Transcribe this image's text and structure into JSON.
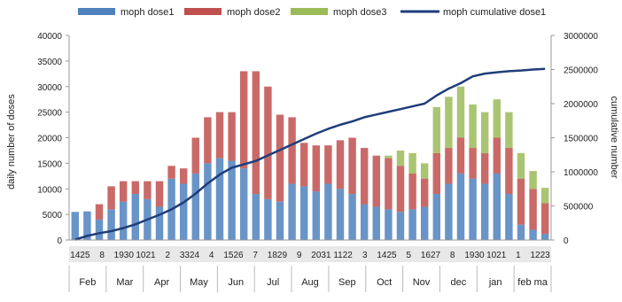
{
  "chart_data": {
    "type": "bar",
    "bar_mode": "stacked",
    "title": "",
    "legend": {
      "placement": "top",
      "entries": [
        {
          "label": "moph dose1",
          "kind": "bar",
          "color": "#4f81bd"
        },
        {
          "label": "moph dose2",
          "kind": "bar",
          "color": "#c0504d"
        },
        {
          "label": "moph dose3",
          "kind": "bar",
          "color": "#9bbb59"
        },
        {
          "label": "moph cumulative dose1",
          "kind": "line",
          "color": "#1f3d7a"
        }
      ]
    },
    "y_left": {
      "label": "daily number of doses",
      "ticks": [
        "0",
        "5000",
        "10000",
        "15000",
        "20000",
        "25000",
        "30000",
        "35000",
        "40000"
      ],
      "range": [
        0,
        40000
      ]
    },
    "y_right": {
      "label": "cumulative number",
      "ticks": [
        "0",
        "500000",
        "1000000",
        "1500000",
        "2000000",
        "2500000",
        "3000000"
      ],
      "range": [
        0,
        3000000
      ]
    },
    "x_tick_text": [
      "1425",
      "8",
      "1930",
      "1021",
      "2",
      "3324",
      "4",
      "1526",
      "7",
      "1829",
      "9",
      "2031",
      "1122",
      "3",
      "1425",
      "5",
      "1627",
      "8",
      "1930",
      "1021",
      "1",
      "1223"
    ],
    "months": [
      "Feb",
      "Mar",
      "Apr",
      "May",
      "Jun",
      "Jul",
      "Aug",
      "Sep",
      "Oct",
      "Nov",
      "dec",
      "jan",
      "feb ma"
    ],
    "grid": false,
    "series": [
      {
        "name": "moph dose1",
        "values": [
          5500,
          5600,
          4000,
          6000,
          7500,
          9000,
          8000,
          6500,
          12000,
          11000,
          13000,
          15000,
          16000,
          15500,
          14000,
          9000,
          8000,
          7500,
          11000,
          10500,
          9500,
          11000,
          10000,
          9000,
          7000,
          6500,
          6000,
          5500,
          6000,
          6500,
          9000,
          11000,
          13000,
          12000,
          11000,
          13000,
          9000,
          3000,
          2000,
          1200
        ]
      },
      {
        "name": "moph dose2",
        "values": [
          0,
          0,
          3000,
          4500,
          4000,
          2500,
          3500,
          5000,
          2500,
          3000,
          7000,
          9000,
          9000,
          9500,
          19000,
          24000,
          22000,
          17000,
          13000,
          8500,
          9000,
          7500,
          9500,
          11000,
          11000,
          10000,
          10000,
          9000,
          7000,
          5500,
          8000,
          7000,
          7000,
          6000,
          6000,
          7000,
          9000,
          9000,
          8000,
          6000
        ]
      },
      {
        "name": "moph dose3",
        "values": [
          0,
          0,
          0,
          0,
          0,
          0,
          0,
          0,
          0,
          0,
          0,
          0,
          0,
          0,
          0,
          0,
          0,
          0,
          0,
          0,
          0,
          0,
          0,
          0,
          0,
          0,
          500,
          3000,
          4000,
          3000,
          9000,
          10000,
          10000,
          8500,
          8000,
          7500,
          7000,
          5000,
          3500,
          3000
        ]
      }
    ],
    "cumulative": {
      "name": "moph cumulative dose1",
      "values": [
        5000,
        60000,
        100000,
        130000,
        175000,
        230000,
        300000,
        370000,
        450000,
        550000,
        680000,
        830000,
        960000,
        1060000,
        1110000,
        1160000,
        1240000,
        1320000,
        1400000,
        1480000,
        1560000,
        1630000,
        1690000,
        1740000,
        1800000,
        1840000,
        1880000,
        1920000,
        1960000,
        2000000,
        2120000,
        2220000,
        2300000,
        2400000,
        2440000,
        2460000,
        2475000,
        2485000,
        2500000,
        2510000
      ]
    }
  }
}
